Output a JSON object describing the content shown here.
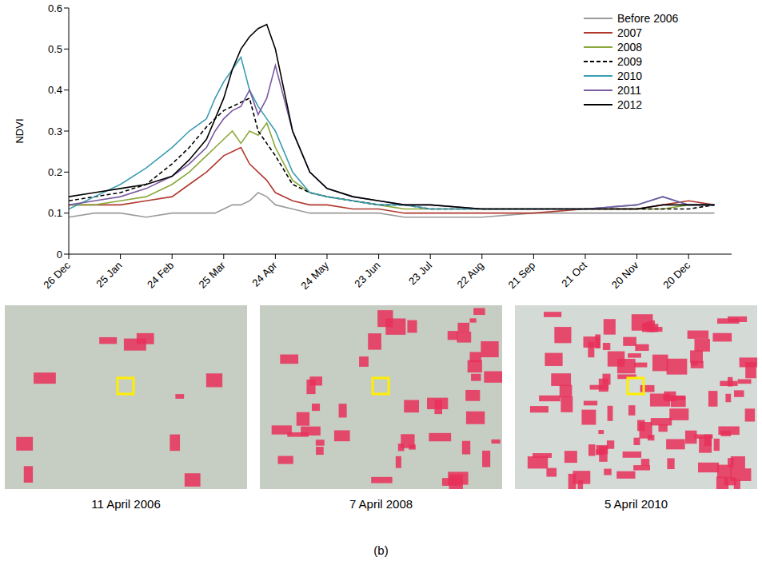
{
  "chart_data": {
    "type": "line",
    "y_label": "NDVI",
    "legend": "top-right",
    "grid": false,
    "x": [
      0,
      15,
      30,
      45,
      60,
      70,
      80,
      85,
      90,
      95,
      100,
      105,
      110,
      115,
      120,
      130,
      140,
      150,
      165,
      180,
      195,
      210,
      240,
      270,
      300,
      330,
      345,
      360,
      375
    ],
    "xlim": [
      0,
      385
    ],
    "xticks": [
      {
        "value": 0,
        "label": "26 Dec"
      },
      {
        "value": 30,
        "label": "25 Jan"
      },
      {
        "value": 60,
        "label": "24 Feb"
      },
      {
        "value": 90,
        "label": "25 Mar"
      },
      {
        "value": 120,
        "label": "24 Apr"
      },
      {
        "value": 150,
        "label": "24 May"
      },
      {
        "value": 180,
        "label": "23 Jun"
      },
      {
        "value": 210,
        "label": "23 Jul"
      },
      {
        "value": 240,
        "label": "22 Aug"
      },
      {
        "value": 270,
        "label": "21 Sep"
      },
      {
        "value": 300,
        "label": "21 Oct"
      },
      {
        "value": 330,
        "label": "20 Nov"
      },
      {
        "value": 360,
        "label": "20 Dec"
      }
    ],
    "ylim": [
      0,
      0.6
    ],
    "yticks": [
      0,
      0.1,
      0.2,
      0.3,
      0.4,
      0.5,
      0.6
    ],
    "series": [
      {
        "name": "Before 2006",
        "color": "#9a9a9a",
        "line_style": "solid",
        "values": [
          0.09,
          0.1,
          0.1,
          0.09,
          0.1,
          0.1,
          0.1,
          0.1,
          0.11,
          0.12,
          0.12,
          0.13,
          0.15,
          0.14,
          0.12,
          0.11,
          0.1,
          0.1,
          0.1,
          0.1,
          0.09,
          0.09,
          0.09,
          0.1,
          0.1,
          0.1,
          0.1,
          0.1,
          0.1
        ]
      },
      {
        "name": "2007",
        "color": "#b0392e",
        "line_style": "solid",
        "values": [
          0.12,
          0.12,
          0.12,
          0.13,
          0.14,
          0.17,
          0.2,
          0.22,
          0.24,
          0.25,
          0.26,
          0.22,
          0.2,
          0.18,
          0.15,
          0.13,
          0.12,
          0.12,
          0.11,
          0.11,
          0.1,
          0.1,
          0.1,
          0.1,
          0.11,
          0.11,
          0.12,
          0.13,
          0.12
        ]
      },
      {
        "name": "2008",
        "color": "#8aa83a",
        "line_style": "solid",
        "values": [
          0.12,
          0.12,
          0.13,
          0.14,
          0.17,
          0.2,
          0.24,
          0.26,
          0.28,
          0.3,
          0.27,
          0.3,
          0.29,
          0.32,
          0.26,
          0.18,
          0.15,
          0.14,
          0.13,
          0.12,
          0.11,
          0.11,
          0.11,
          0.11,
          0.11,
          0.11,
          0.11,
          0.12,
          0.12
        ]
      },
      {
        "name": "2009",
        "color": "#000000",
        "line_style": "dashed",
        "values": [
          0.13,
          0.14,
          0.15,
          0.17,
          0.22,
          0.26,
          0.31,
          0.33,
          0.35,
          0.36,
          0.37,
          0.38,
          0.3,
          0.27,
          0.24,
          0.17,
          0.15,
          0.14,
          0.13,
          0.12,
          0.12,
          0.11,
          0.11,
          0.11,
          0.11,
          0.11,
          0.11,
          0.11,
          0.12
        ]
      },
      {
        "name": "2010",
        "color": "#3b9db3",
        "line_style": "solid",
        "values": [
          0.11,
          0.14,
          0.17,
          0.21,
          0.26,
          0.3,
          0.33,
          0.38,
          0.42,
          0.45,
          0.48,
          0.4,
          0.36,
          0.33,
          0.3,
          0.2,
          0.15,
          0.14,
          0.13,
          0.12,
          0.12,
          0.11,
          0.11,
          0.11,
          0.11,
          0.12,
          0.14,
          0.12,
          0.12
        ]
      },
      {
        "name": "2011",
        "color": "#7a5aa0",
        "line_style": "solid",
        "values": [
          0.12,
          0.13,
          0.14,
          0.16,
          0.19,
          0.22,
          0.26,
          0.3,
          0.33,
          0.35,
          0.36,
          0.4,
          0.34,
          0.38,
          0.46,
          0.3,
          0.2,
          0.16,
          0.14,
          0.13,
          0.12,
          0.12,
          0.11,
          0.11,
          0.11,
          0.12,
          0.14,
          0.12,
          0.12
        ]
      },
      {
        "name": "2012",
        "color": "#000000",
        "line_style": "solid",
        "values": [
          0.14,
          0.15,
          0.16,
          0.17,
          0.19,
          0.23,
          0.28,
          0.33,
          0.38,
          0.45,
          0.5,
          0.53,
          0.55,
          0.56,
          0.5,
          0.3,
          0.2,
          0.16,
          0.14,
          0.13,
          0.12,
          0.12,
          0.11,
          0.11,
          0.11,
          0.11,
          0.12,
          0.12,
          0.12
        ]
      }
    ]
  },
  "panels": [
    {
      "caption": "11 April 2006"
    },
    {
      "caption": "7 April 2008"
    },
    {
      "caption": "5 April 2010"
    }
  ],
  "figure_label": "(b)"
}
